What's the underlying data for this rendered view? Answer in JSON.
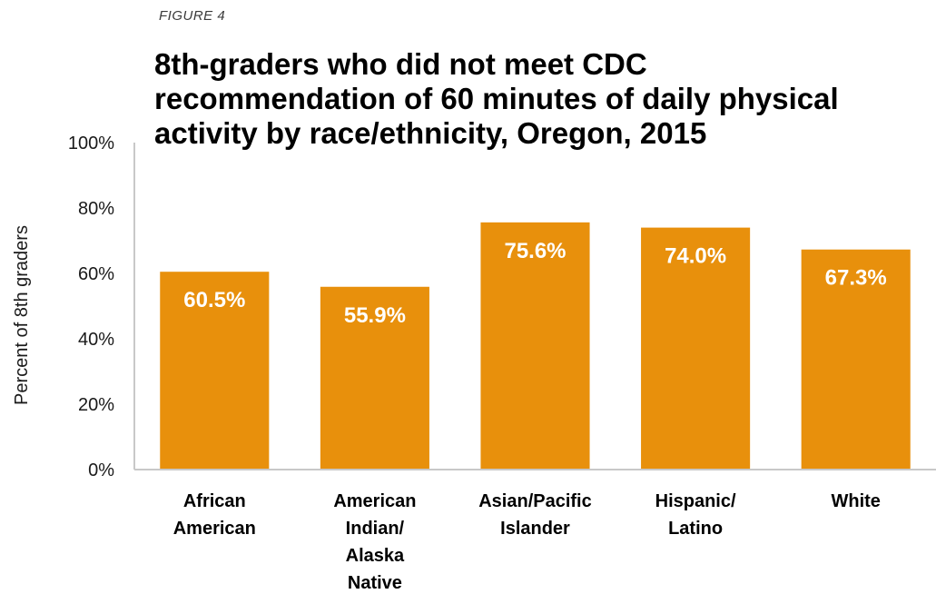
{
  "figure_label": "FIGURE 4",
  "colors": {
    "bar": "#E8900C",
    "axis": "#c8c8c8",
    "label": "#ffffff"
  },
  "chart_data": {
    "type": "bar",
    "title_lines": [
      "8th-graders who did not meet CDC",
      "recommendation of 60 minutes of daily physical",
      "activity by race/ethnicity, Oregon, 2015"
    ],
    "categories": [
      [
        "African",
        "American"
      ],
      [
        "American",
        "Indian/",
        "Alaska",
        "Native"
      ],
      [
        "Asian/Pacific",
        "Islander"
      ],
      [
        "Hispanic/",
        "Latino"
      ],
      [
        "White"
      ]
    ],
    "values": [
      60.5,
      55.9,
      75.6,
      74.0,
      67.3
    ],
    "data_labels": [
      "60.5%",
      "55.9%",
      "75.6%",
      "74.0%",
      "67.3%"
    ],
    "ylabel": "Percent of 8th graders",
    "ylim": [
      0,
      100
    ],
    "yticks": [
      0,
      20,
      40,
      60,
      80,
      100
    ],
    "ytick_labels": [
      "0%",
      "20%",
      "40%",
      "60%",
      "80%",
      "100%"
    ],
    "grid": false,
    "legend": "none"
  }
}
